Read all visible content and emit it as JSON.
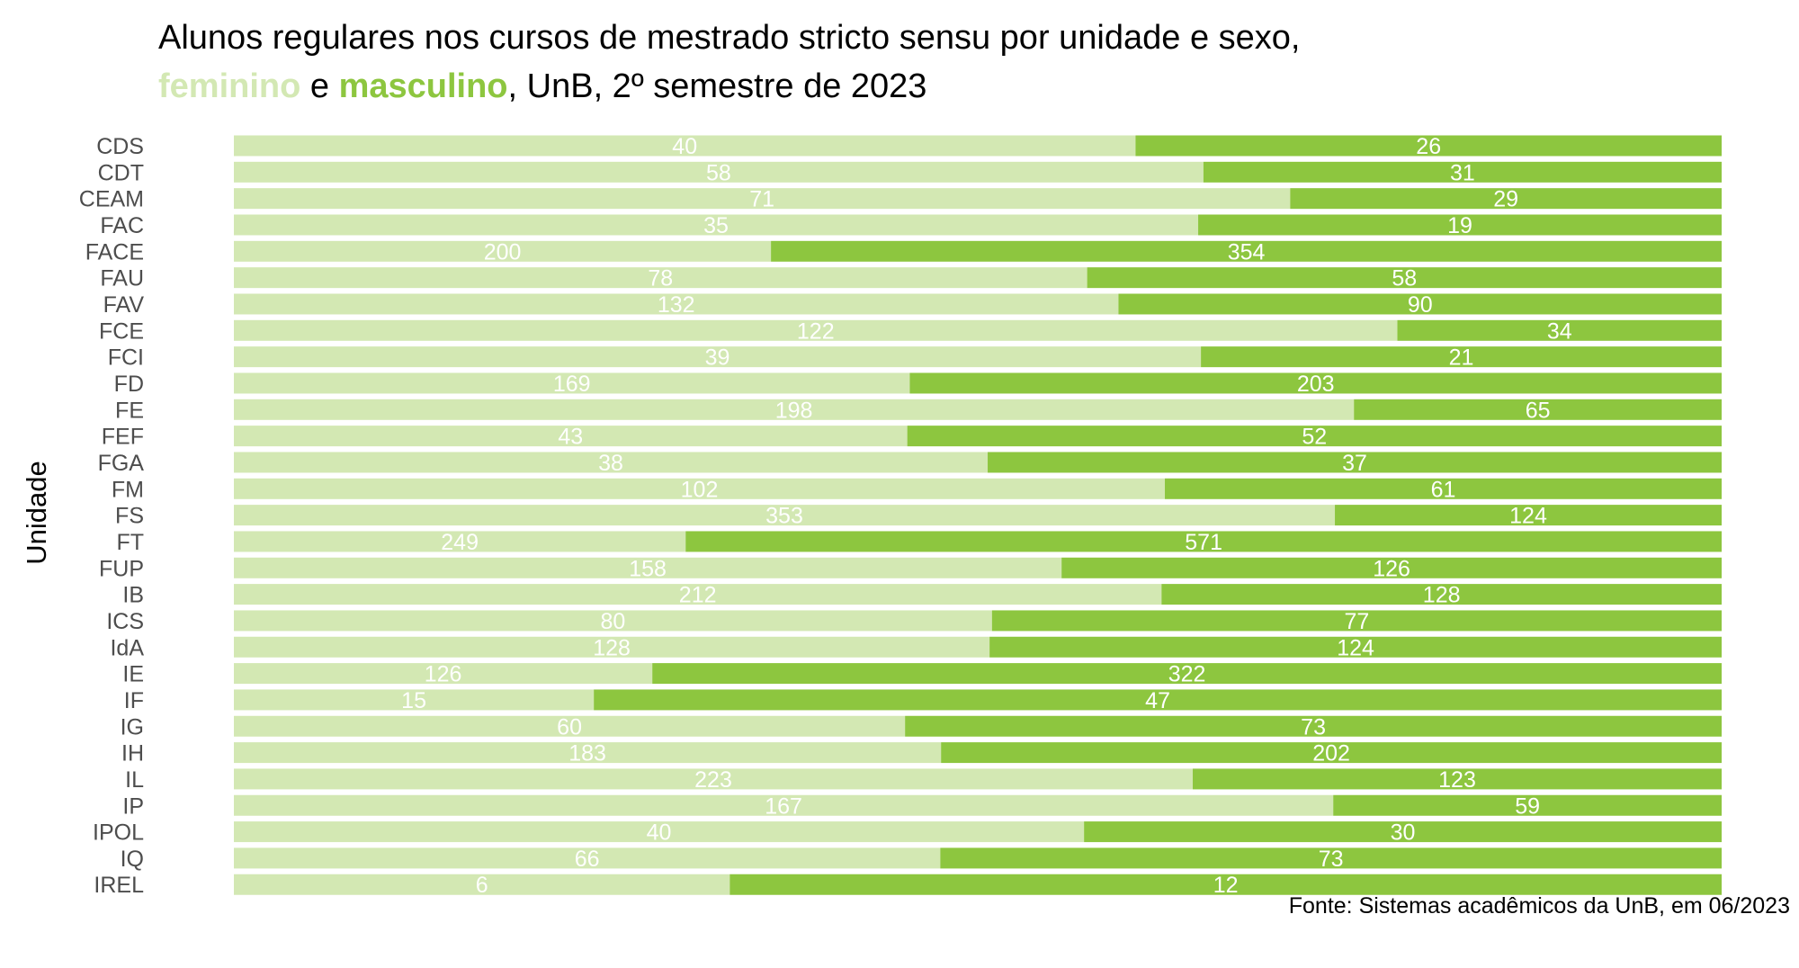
{
  "chart_data": {
    "type": "bar",
    "orientation": "horizontal",
    "stacked": "percent",
    "title": {
      "line1": "Alunos regulares nos cursos de mestrado stricto sensu por unidade e sexo,",
      "line2_part1": "feminino",
      "line2_part2": " e ",
      "line2_part3": "masculino",
      "line2_part4": ", UnB, 2º semestre de 2023"
    },
    "ylabel": "Unidade",
    "xlabel": "",
    "caption": "Fonte: Sistemas acadêmicos da UnB, em 06/2023",
    "categories": [
      "CDS",
      "CDT",
      "CEAM",
      "FAC",
      "FACE",
      "FAU",
      "FAV",
      "FCE",
      "FCI",
      "FD",
      "FE",
      "FEF",
      "FGA",
      "FM",
      "FS",
      "FT",
      "FUP",
      "IB",
      "ICS",
      "IdA",
      "IE",
      "IF",
      "IG",
      "IH",
      "IL",
      "IP",
      "IPOL",
      "IQ",
      "IREL"
    ],
    "series": [
      {
        "name": "feminino",
        "color": "#d3e8b3",
        "values": [
          40,
          58,
          71,
          35,
          200,
          78,
          132,
          122,
          39,
          169,
          198,
          43,
          38,
          102,
          353,
          249,
          158,
          212,
          80,
          128,
          126,
          15,
          60,
          183,
          223,
          167,
          40,
          66,
          6
        ]
      },
      {
        "name": "masculino",
        "color": "#8dc63f",
        "values": [
          26,
          31,
          29,
          19,
          354,
          58,
          90,
          34,
          21,
          203,
          65,
          52,
          37,
          61,
          124,
          571,
          126,
          128,
          77,
          124,
          322,
          47,
          73,
          202,
          123,
          59,
          30,
          73,
          12
        ]
      }
    ],
    "grid": false,
    "legend": "in-title"
  }
}
